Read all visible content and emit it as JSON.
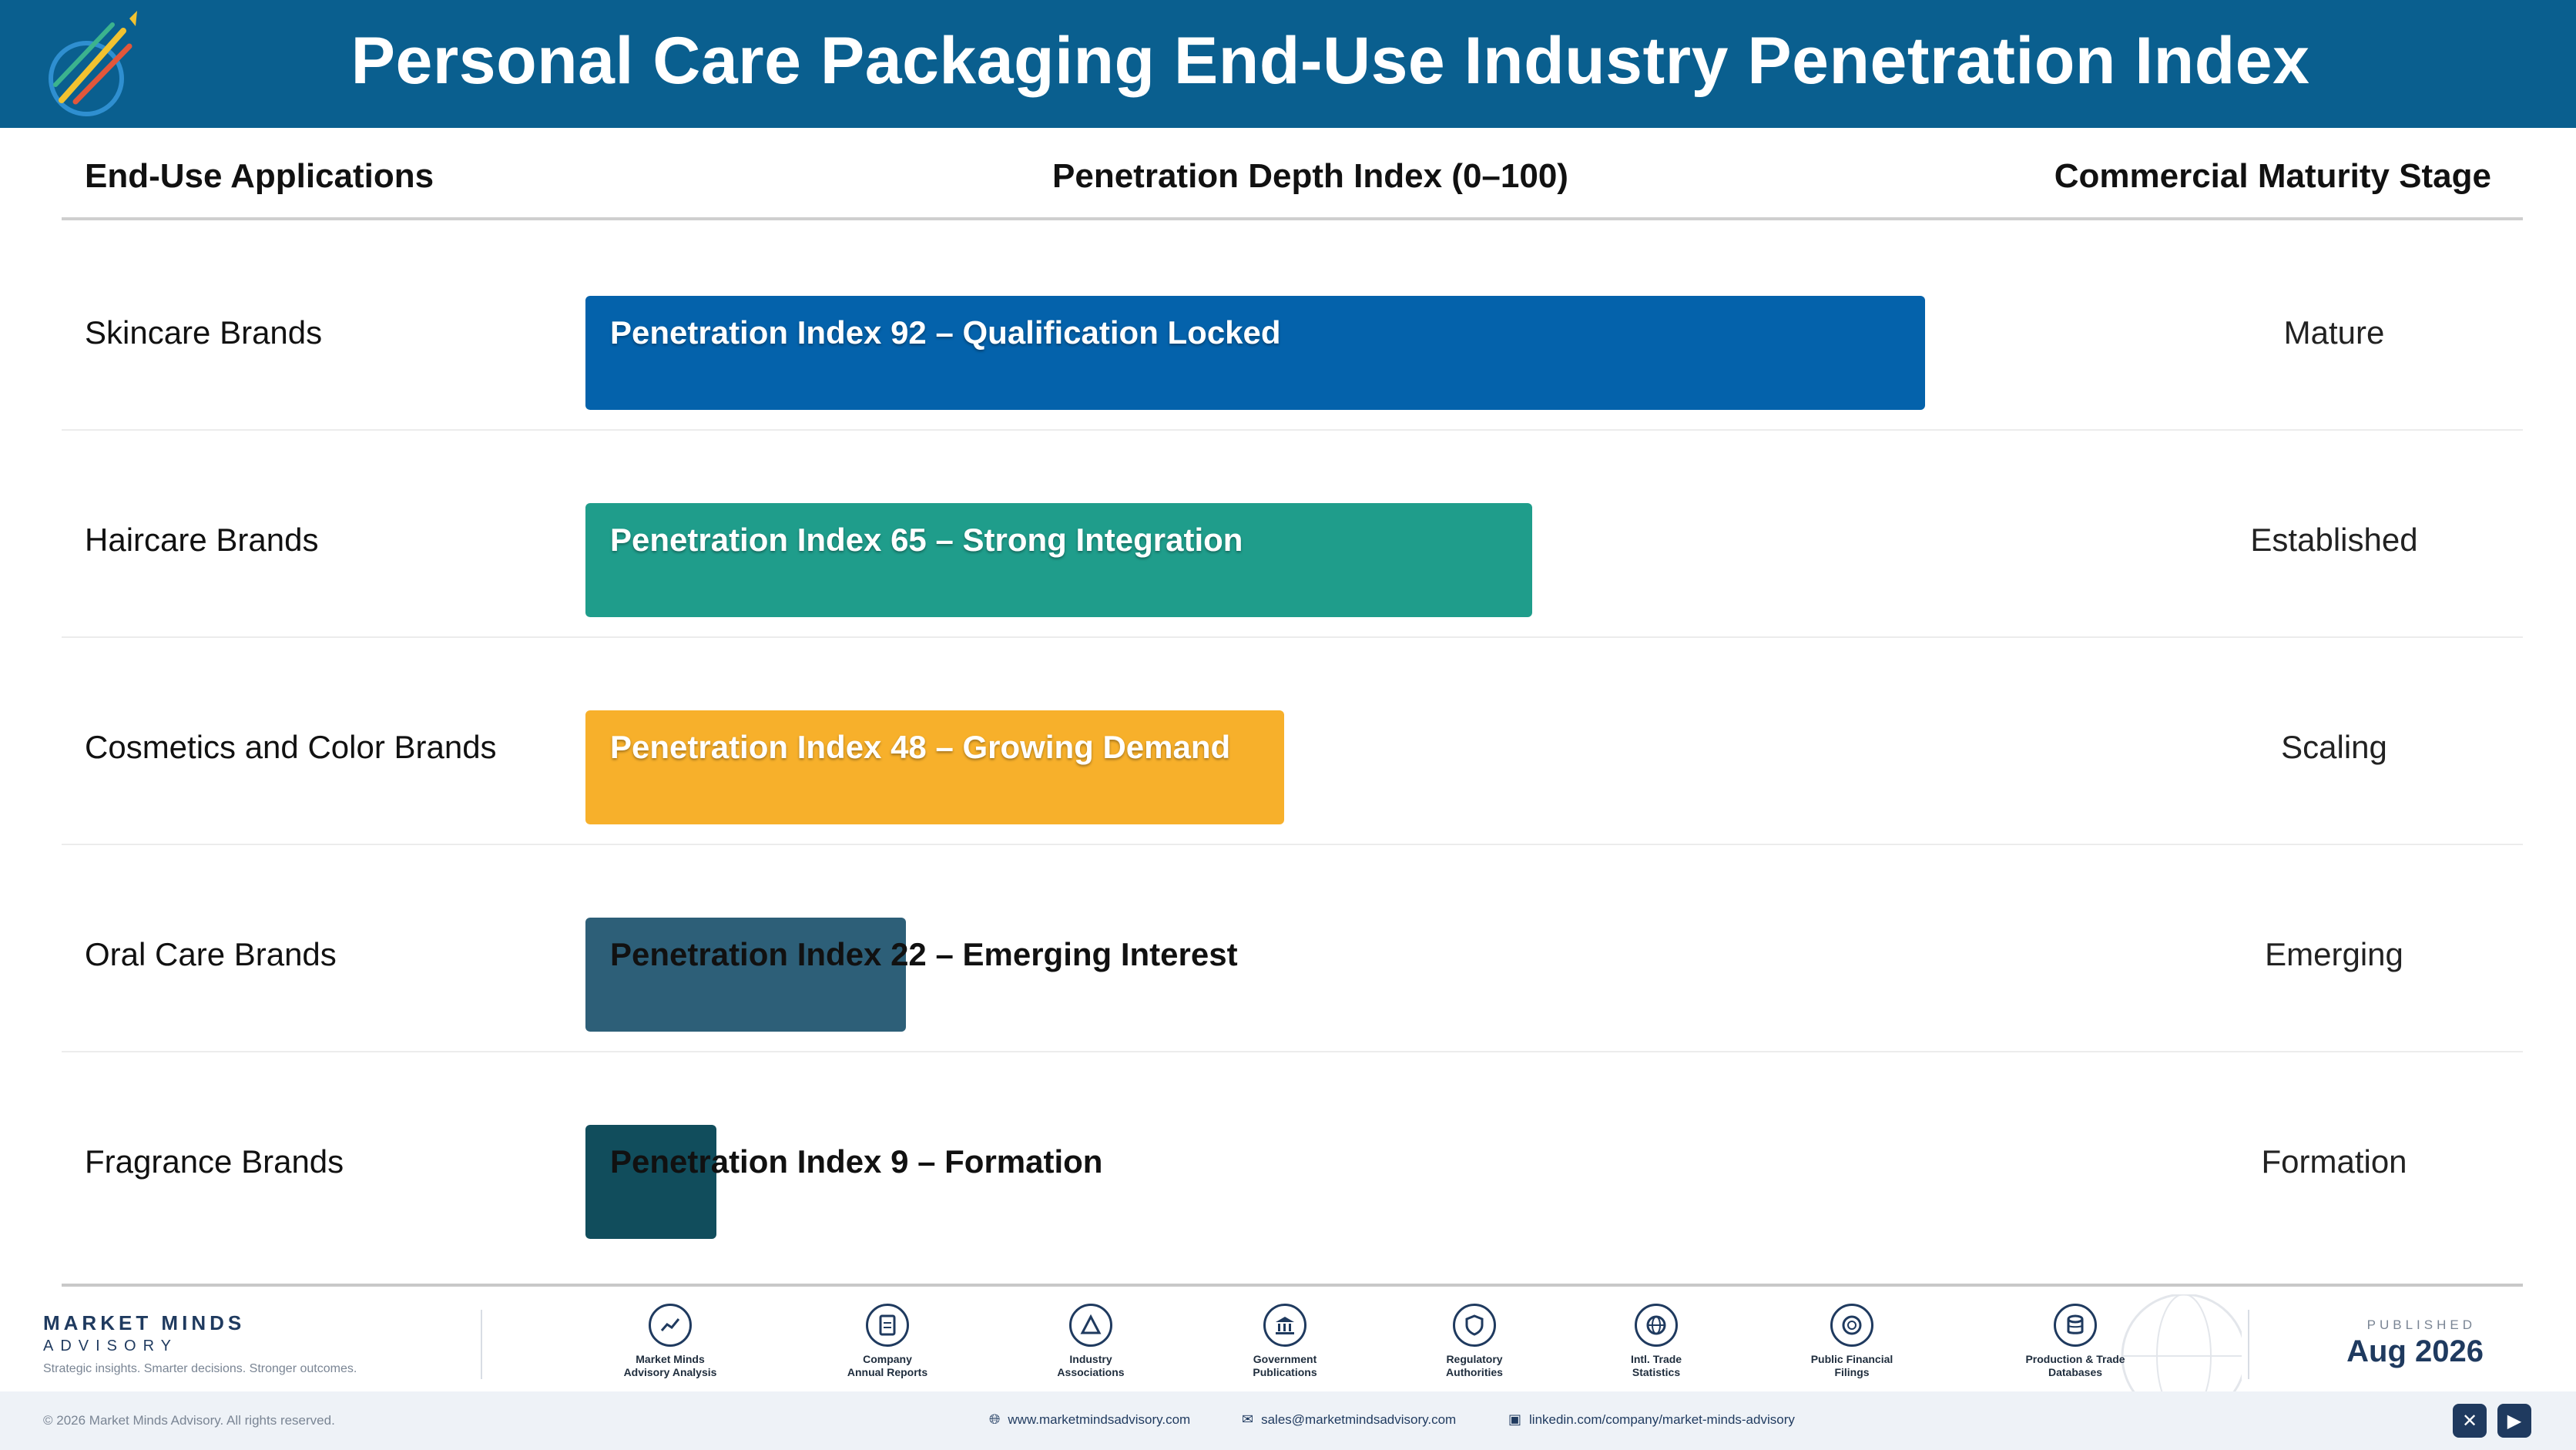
{
  "header": {
    "title": "Personal Care Packaging End-Use Industry Penetration Index"
  },
  "columns": {
    "applications": "End-Use Applications",
    "depth": "Penetration Depth Index (0–100)",
    "stage": "Commercial Maturity Stage"
  },
  "chart_data": {
    "type": "bar",
    "orientation": "horizontal",
    "title": "Personal Care Packaging End-Use Industry Penetration Index",
    "xlabel": "Penetration Depth Index (0–100)",
    "xlim": [
      0,
      100
    ],
    "categories": [
      "Skincare Brands",
      "Haircare Brands",
      "Cosmetics and Color Brands",
      "Oral Care Brands",
      "Fragrance Brands"
    ],
    "values": [
      92,
      65,
      48,
      22,
      9
    ],
    "bar_labels": [
      "Penetration Index 92 – Qualification Locked",
      "Penetration Index 65 – Strong Integration",
      "Penetration Index 48 – Growing Demand",
      "Penetration Index 22 – Emerging Interest",
      "Penetration Index 9 – Formation"
    ],
    "stages": [
      "Mature",
      "Established",
      "Scaling",
      "Emerging",
      "Formation"
    ],
    "colors": [
      "#0462ab",
      "#1f9d8b",
      "#f7b02b",
      "#2d5f78",
      "#114d5c"
    ]
  },
  "footer": {
    "brand_name": "MARKET MINDS",
    "brand_sub": "ADVISORY",
    "tagline": "Strategic insights. Smarter decisions. Stronger outcomes.",
    "sources": [
      {
        "label": "Market Minds\nAdvisory Analysis",
        "icon": "chart-line-icon"
      },
      {
        "label": "Company\nAnnual Reports",
        "icon": "document-icon"
      },
      {
        "label": "Industry\nAssociations",
        "icon": "network-icon"
      },
      {
        "label": "Government\nPublications",
        "icon": "building-icon"
      },
      {
        "label": "Regulatory\nAuthorities",
        "icon": "shield-icon"
      },
      {
        "label": "Intl. Trade\nStatistics",
        "icon": "globe-icon"
      },
      {
        "label": "Public Financial\nFilings",
        "icon": "coin-icon"
      },
      {
        "label": "Production & Trade\nDatabases",
        "icon": "database-icon"
      }
    ],
    "published_label": "PUBLISHED",
    "published_date": "Aug 2026",
    "copyright": "© 2026 Market Minds Advisory. All rights reserved.",
    "website": "www.marketmindsadvisory.com",
    "email": "sales@marketmindsadvisory.com",
    "linkedin": "linkedin.com/company/market-minds-advisory"
  }
}
